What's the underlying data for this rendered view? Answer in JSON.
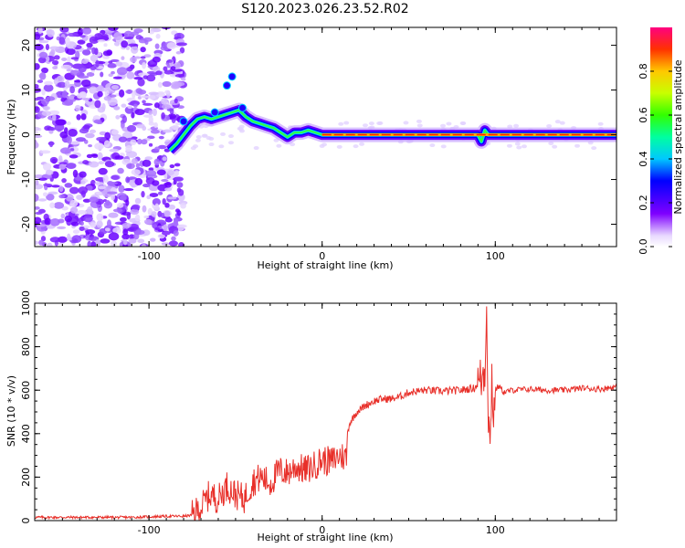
{
  "title": "S120.2023.026.23.52.R02",
  "colors": {
    "snr_line": "#e8302a",
    "frame": "#000000",
    "background": "#ffffff"
  },
  "chart_data": [
    {
      "type": "heatmap",
      "xlabel": "Height of straight line (km)",
      "ylabel": "Frequency (Hz)",
      "xlim": [
        -166,
        170
      ],
      "ylim": [
        -25,
        24
      ],
      "xticks": [
        -100,
        0,
        100
      ],
      "xtick_labels": [
        "-100",
        "0",
        "100"
      ],
      "yticks": [
        -20,
        -10,
        0,
        10,
        20
      ],
      "ytick_labels": [
        "-20",
        "-10",
        "0",
        "10",
        "20"
      ],
      "colorbar": {
        "label": "Normalized spectral amplitude",
        "range": [
          0,
          1
        ],
        "ticks": [
          0.0,
          0.2,
          0.4,
          0.6,
          0.8
        ],
        "tick_labels": [
          "0.0",
          "0.2",
          "0.4",
          "0.6",
          "0.8"
        ],
        "colormap": "rainbow (white/violet to magenta)"
      },
      "features": {
        "noise_region_x": [
          -166,
          -80
        ],
        "ridge_points": [
          [
            -88,
            -3.5
          ],
          [
            -84,
            -2
          ],
          [
            -80,
            0
          ],
          [
            -76,
            2
          ],
          [
            -72,
            3.5
          ],
          [
            -68,
            4
          ],
          [
            -64,
            3.5
          ],
          [
            -60,
            4
          ],
          [
            -56,
            4.5
          ],
          [
            -52,
            5
          ],
          [
            -48,
            5.5
          ],
          [
            -44,
            4
          ],
          [
            -40,
            3
          ],
          [
            -36,
            2.5
          ],
          [
            -32,
            2
          ],
          [
            -28,
            1.5
          ],
          [
            -24,
            0.5
          ],
          [
            -20,
            -0.5
          ],
          [
            -16,
            0.5
          ],
          [
            -12,
            0.5
          ],
          [
            -8,
            1
          ],
          [
            -4,
            0.5
          ],
          [
            0,
            0
          ],
          [
            90,
            0
          ],
          [
            92,
            -1.5
          ],
          [
            94,
            1
          ],
          [
            96,
            0
          ],
          [
            170,
            0
          ]
        ],
        "high_amplitude_segment_x": [
          0,
          170
        ],
        "high_amplitude_frequency": 0
      }
    },
    {
      "type": "line",
      "xlabel": "Height of straight line (km)",
      "ylabel": "SNR (10 * v/v)",
      "xlim": [
        -166,
        170
      ],
      "ylim": [
        0,
        1000
      ],
      "xticks": [
        -100,
        0,
        100
      ],
      "xtick_labels": [
        "-100",
        "0",
        "100"
      ],
      "yticks": [
        0,
        200,
        400,
        600,
        800,
        1000
      ],
      "ytick_labels": [
        "0",
        "200",
        "400",
        "600",
        "800",
        "1000"
      ],
      "series": [
        {
          "x": [
            -166,
            -150,
            -130,
            -110,
            -90,
            -80,
            -75,
            -70,
            -65,
            -60,
            -55,
            -50,
            -45,
            -40,
            -35,
            -30,
            -25,
            -20,
            -15,
            -10,
            -5,
            0,
            5,
            10,
            14,
            15,
            16,
            20,
            25,
            30,
            35,
            40,
            45,
            50,
            60,
            70,
            80,
            88,
            92,
            94,
            95,
            96,
            97,
            98,
            99,
            100,
            102,
            105,
            110,
            120,
            130,
            140,
            150,
            160,
            170
          ],
          "y": [
            15,
            15,
            15,
            15,
            20,
            20,
            25,
            60,
            120,
            100,
            160,
            120,
            100,
            180,
            200,
            170,
            230,
            220,
            250,
            230,
            250,
            280,
            270,
            300,
            290,
            420,
            450,
            500,
            530,
            550,
            560,
            560,
            570,
            590,
            600,
            595,
            600,
            610,
            650,
            700,
            1000,
            500,
            300,
            700,
            450,
            600,
            620,
            590,
            600,
            605,
            600,
            600,
            610,
            605,
            615
          ]
        }
      ],
      "grid": false
    }
  ]
}
